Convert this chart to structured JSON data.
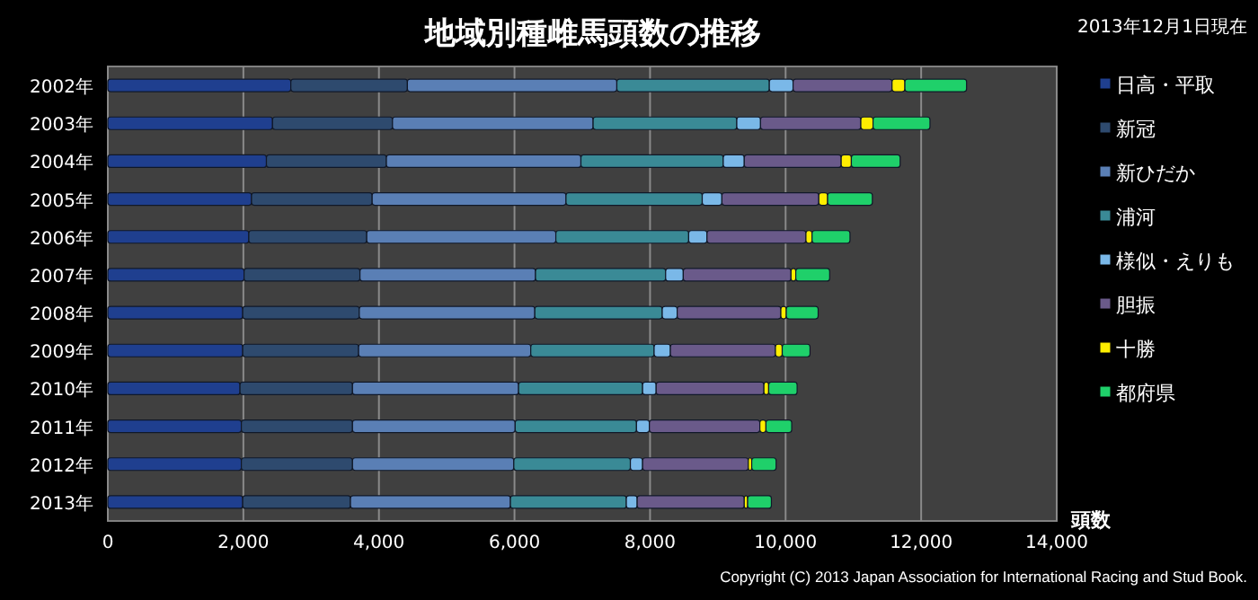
{
  "chart_data": {
    "type": "bar",
    "orientation": "horizontal",
    "stacked": true,
    "title": "地域別種雌馬頭数の推移",
    "categories": [
      "2002年",
      "2003年",
      "2004年",
      "2005年",
      "2006年",
      "2007年",
      "2008年",
      "2009年",
      "2010年",
      "2011年",
      "2012年",
      "2013年"
    ],
    "series": [
      {
        "name": "日高・平取",
        "color": "#1f3f8f",
        "values": [
          2700,
          2430,
          2340,
          2120,
          2080,
          2010,
          1990,
          1990,
          1950,
          1970,
          1970,
          1990
        ]
      },
      {
        "name": "新冠",
        "color": "#2e4a6e",
        "values": [
          1720,
          1770,
          1770,
          1780,
          1740,
          1710,
          1720,
          1710,
          1660,
          1640,
          1640,
          1590
        ]
      },
      {
        "name": "新ひだか",
        "color": "#5a7fb5",
        "values": [
          3090,
          2960,
          2870,
          2860,
          2790,
          2590,
          2590,
          2540,
          2450,
          2400,
          2380,
          2360
        ]
      },
      {
        "name": "浦河",
        "color": "#3a8a96",
        "values": [
          2250,
          2120,
          2100,
          2010,
          1960,
          1920,
          1880,
          1820,
          1830,
          1790,
          1720,
          1710
        ]
      },
      {
        "name": "様似・えりも",
        "color": "#7ab8e8",
        "values": [
          350,
          350,
          310,
          290,
          270,
          260,
          220,
          240,
          200,
          190,
          180,
          160
        ]
      },
      {
        "name": "胆振",
        "color": "#6a5a8a",
        "values": [
          1460,
          1480,
          1430,
          1430,
          1460,
          1590,
          1530,
          1550,
          1590,
          1630,
          1560,
          1580
        ]
      },
      {
        "name": "十勝",
        "color": "#ffee00",
        "values": [
          190,
          180,
          150,
          130,
          90,
          70,
          80,
          100,
          70,
          90,
          50,
          50
        ]
      },
      {
        "name": "都府県",
        "color": "#1fd06a",
        "values": [
          910,
          840,
          720,
          660,
          560,
          500,
          470,
          410,
          420,
          380,
          360,
          350
        ]
      }
    ],
    "xlim": [
      0,
      14000
    ],
    "xticks": [
      0,
      {
        "value": 2000,
        "label": "2,000"
      },
      {
        "value": 4000,
        "label": "4,000"
      },
      {
        "value": 6000,
        "label": "6,000"
      },
      {
        "value": 8000,
        "label": "8,000"
      },
      {
        "value": 10000,
        "label": "10,000"
      },
      {
        "value": 12000,
        "label": "12,000"
      },
      {
        "value": 14000,
        "label": "14,000"
      }
    ],
    "xlabel": "頭数",
    "grid": "x",
    "legend": "right",
    "annotations": [
      "2013年12月1日現在",
      "Copyright (C) 2013  Japan Association for International Racing and Stud Book."
    ]
  }
}
